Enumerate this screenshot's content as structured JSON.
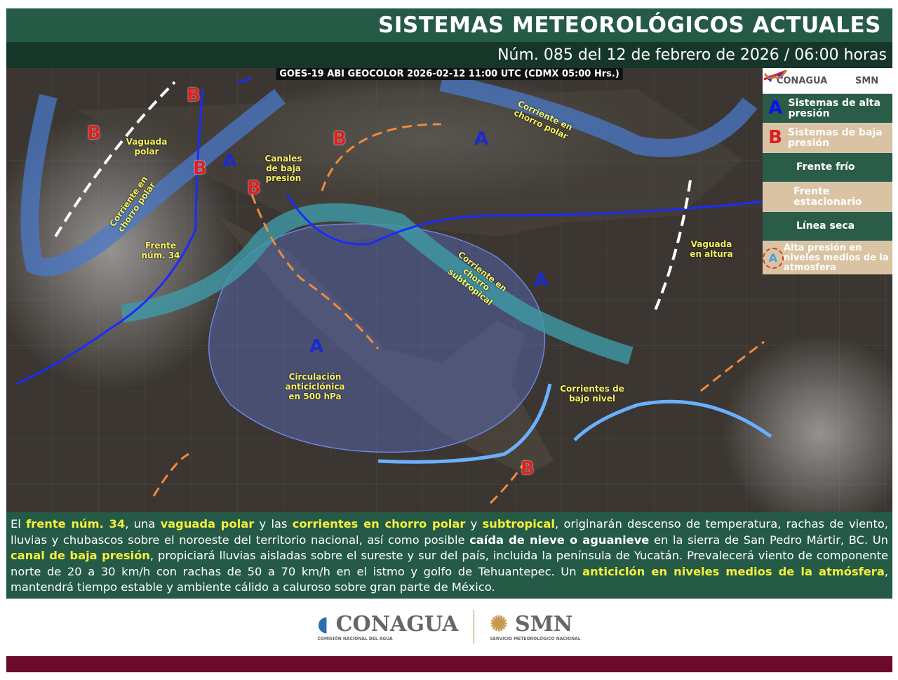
{
  "header": {
    "title": "SISTEMAS METEOROLÓGICOS ACTUALES",
    "subtitle": "Núm. 085 del 12 de febrero de 2026 / 06:00 horas"
  },
  "map": {
    "satellite_label": "GOES-19 ABI GEOCOLOR 2026-02-12 11:00 UTC (CDMX  05:00 Hrs.)",
    "labels": [
      "Vaguada polar",
      "Corriente en chorro polar",
      "Frente núm. 34",
      "Canales de baja presión",
      "Corriente en chorro polar",
      "Corriente en chorro subtropical",
      "Vaguada en altura",
      "Circulación anticiclónica en 500 hPa",
      "Corrientes de bajo nivel"
    ],
    "high_symbol": "A",
    "low_symbol": "B",
    "colors": {
      "cold_front": "#1a2cff",
      "warm_segment": "#e01818",
      "dry_line": "#f08a40",
      "jet": "#4a78c8",
      "subtropical_jet": "#3f9aa8",
      "anticyclone": "#5a6fc0"
    }
  },
  "legend": {
    "logo_left": "CONAGUA",
    "logo_right": "SMN",
    "items": [
      {
        "icon": "A",
        "label": "Sistemas de alta presión"
      },
      {
        "icon": "B",
        "label": "Sistemas de baja presión"
      },
      {
        "icon": "cold-front",
        "label": "Frente frío"
      },
      {
        "icon": "stationary-front",
        "label": "Frente estacionario"
      },
      {
        "icon": "dry-line",
        "label": "Línea seca"
      },
      {
        "icon": "A",
        "label": "Alta presión en niveles medios de la atmosfera"
      }
    ]
  },
  "text": {
    "p1": "El ",
    "h1": "frente núm. 34",
    "p2": ", una ",
    "h2": "vaguada polar",
    "p3": " y las ",
    "h3": "corrientes en chorro polar",
    "p4": " y ",
    "h4": "subtropical",
    "p5": ", originarán descenso de temperatura, rachas de viento, lluvias y chubascos sobre el noroeste del territorio nacional, así como posible ",
    "h5": "caída de nieve o aguanieve",
    "p6": " en la sierra de San Pedro Mártir, BC. Un ",
    "h6": "canal de baja presión",
    "p7": ", propiciará lluvias aisladas sobre el sureste y sur del país, incluida la península de Yucatán. Prevalecerá viento de componente norte de 20 a 30 km/h con rachas de 50 a 70 km/h en el istmo y golfo de Tehuantepec. Un ",
    "h7": "anticiclón en niveles medios de la atmósfera",
    "p8": ", mantendrá tiempo estable y ambiente cálido a caluroso sobre gran parte de México."
  },
  "footer": {
    "conagua": "CONAGUA",
    "conagua_sub": "COMISIÓN NACIONAL DEL AGUA",
    "smn": "SMN",
    "smn_sub": "SERVICIO METEOROLÓGICO NACIONAL"
  }
}
